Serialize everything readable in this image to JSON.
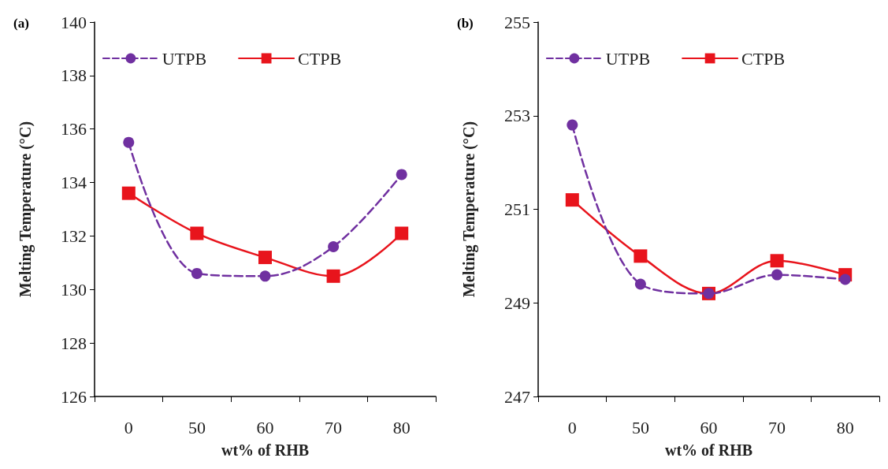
{
  "chart_data": [
    {
      "type": "line",
      "title": "(a)",
      "xlabel": "wt% of RHB",
      "ylabel": "Melting Temperature (°C)",
      "categories": [
        "0",
        "50",
        "60",
        "70",
        "80"
      ],
      "ylim": [
        126,
        140
      ],
      "yticks": [
        126,
        128,
        130,
        132,
        134,
        136,
        138,
        140
      ],
      "grid": false,
      "legend": "top",
      "series": [
        {
          "name": "UTPB",
          "color": "#7030a0",
          "marker": "circle",
          "line_style": "dashed",
          "values": [
            135.5,
            130.6,
            130.5,
            131.6,
            134.3
          ]
        },
        {
          "name": "CTPB",
          "color": "#e8141c",
          "marker": "square",
          "line_style": "solid",
          "values": [
            133.6,
            132.1,
            131.2,
            130.5,
            132.1
          ]
        }
      ]
    },
    {
      "type": "line",
      "title": "(b)",
      "xlabel": "wt% of RHB",
      "ylabel": "Melting Temperature (°C)",
      "categories": [
        "0",
        "50",
        "60",
        "70",
        "80"
      ],
      "ylim": [
        247,
        255
      ],
      "yticks": [
        247,
        249,
        251,
        253,
        255
      ],
      "grid": false,
      "legend": "top",
      "series": [
        {
          "name": "UTPB",
          "color": "#7030a0",
          "marker": "circle",
          "line_style": "dashed",
          "values": [
            252.8,
            249.4,
            249.2,
            249.6,
            249.5
          ]
        },
        {
          "name": "CTPB",
          "color": "#e8141c",
          "marker": "square",
          "line_style": "solid",
          "values": [
            251.2,
            250.0,
            249.2,
            249.9,
            249.6
          ]
        }
      ]
    }
  ]
}
